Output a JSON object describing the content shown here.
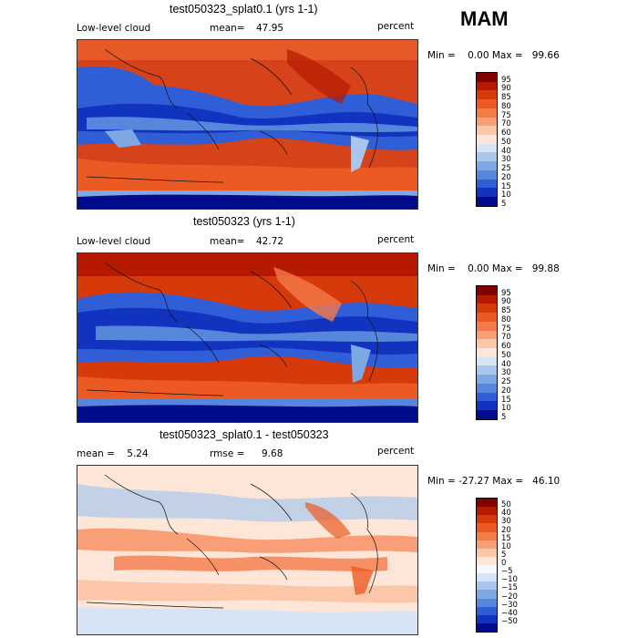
{
  "season": "MAM",
  "panels": [
    {
      "title": "test050323_splat0.1 (yrs 1-1)",
      "left_label": "Low-level cloud",
      "mid_label": "mean=",
      "mid_value": "47.95",
      "unit": "percent",
      "minmax": "Min =    0.00 Max =   99.66",
      "levels": [
        "95",
        "90",
        "85",
        "80",
        "75",
        "70",
        "60",
        "50",
        "40",
        "30",
        "25",
        "20",
        "15",
        "10",
        "5"
      ],
      "colors": [
        "#7f0000",
        "#b51a00",
        "#d63a0a",
        "#ec5a24",
        "#f47b4a",
        "#f99f78",
        "#fcc6a8",
        "#fde6d8",
        "#d6e4f6",
        "#a9c7ee",
        "#7ea8e4",
        "#5787dc",
        "#2f5ed6",
        "#1233c0",
        "#000c8c"
      ]
    },
    {
      "title": "test050323 (yrs 1-1)",
      "left_label": "Low-level cloud",
      "mid_label": "mean=",
      "mid_value": "42.72",
      "unit": "percent",
      "minmax": "Min =    0.00 Max =   99.88",
      "levels": [
        "95",
        "90",
        "85",
        "80",
        "75",
        "70",
        "60",
        "50",
        "40",
        "30",
        "25",
        "20",
        "15",
        "10",
        "5"
      ],
      "colors": [
        "#7f0000",
        "#b51a00",
        "#d63a0a",
        "#ec5a24",
        "#f47b4a",
        "#f99f78",
        "#fcc6a8",
        "#fde6d8",
        "#d6e4f6",
        "#a9c7ee",
        "#7ea8e4",
        "#5787dc",
        "#2f5ed6",
        "#1233c0",
        "#000c8c"
      ]
    },
    {
      "title": "test050323_splat0.1 - test050323",
      "left_label": "mean =    5.24",
      "mid_label": "rmse =",
      "mid_value": "9.68",
      "unit": "percent",
      "minmax": "Min = -27.27 Max =   46.10",
      "levels": [
        "50",
        "40",
        "30",
        "20",
        "15",
        "10",
        "5",
        "0",
        "−5",
        "−10",
        "−15",
        "−20",
        "−30",
        "−40",
        "−50"
      ],
      "colors": [
        "#7f0000",
        "#b51a00",
        "#d63a0a",
        "#ec5a24",
        "#f47b4a",
        "#f99f78",
        "#fcc6a8",
        "#fde6d8",
        "#f4f7fc",
        "#d6e4f6",
        "#a9c7ee",
        "#7ea8e4",
        "#5787dc",
        "#2f5ed6",
        "#1233c0",
        "#000c8c"
      ]
    }
  ]
}
